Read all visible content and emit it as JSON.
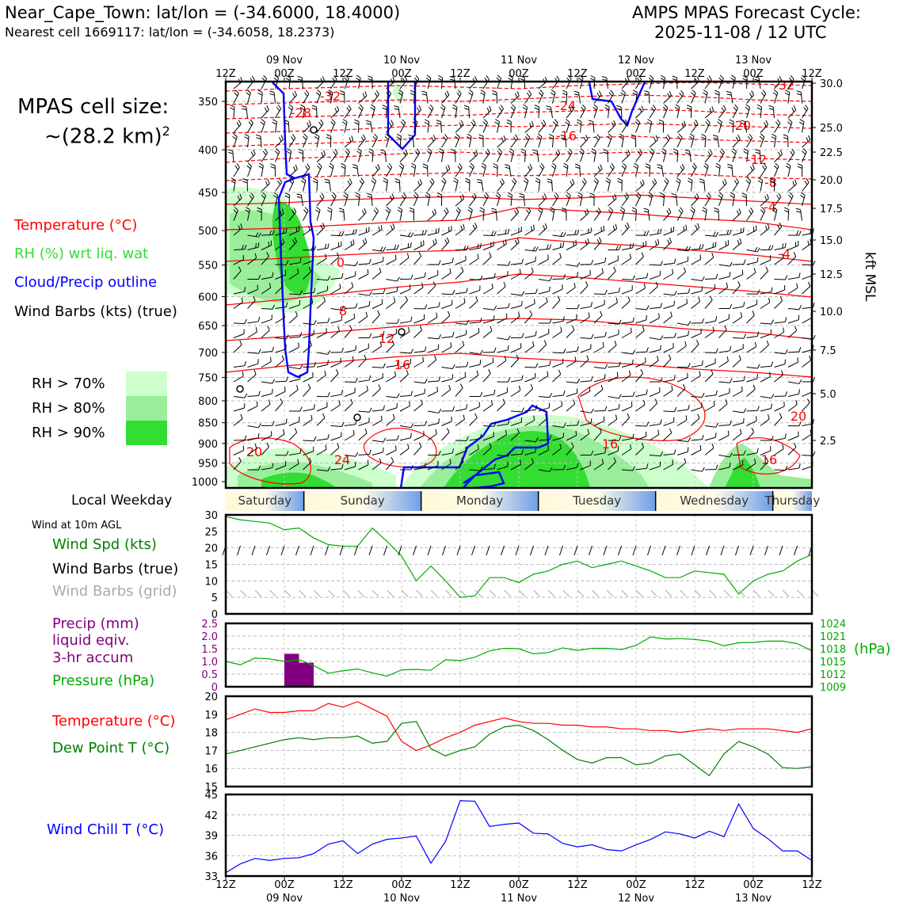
{
  "header": {
    "location": "Near_Cape_Town: lat/lon = (-34.6000, 18.4000)",
    "nearest_cell": "Nearest cell 1669117: lat/lon = (-34.6058, 18.2373)",
    "forecast_title": "AMPS MPAS Forecast Cycle:",
    "forecast_cycle": "2025-11-08 / 12 UTC"
  },
  "cell_size": {
    "line1": "MPAS cell size:",
    "line2": "~(28.2 km)",
    "superscript": "2"
  },
  "legend_upper": {
    "temperature": "Temperature (°C)",
    "rh": "RH (%) wrt liq. wat",
    "cloud": "Cloud/Precip outline",
    "wind": "Wind Barbs (kts) (true)",
    "rh70": "RH > 70%",
    "rh80": "RH > 80%",
    "rh90": "RH > 90%"
  },
  "colors": {
    "temperature": "#ff0000",
    "rh_text": "#33cc33",
    "cloud": "#0000ff",
    "rh70": "#ccffcc",
    "rh80": "#99ee99",
    "rh90": "#33dd33",
    "pressure": "#00aa00",
    "precip": "#800080",
    "dewpoint": "#008000",
    "windchill": "#0000ff",
    "grid_barbs": "#aaaaaa"
  },
  "time_axis": {
    "ticks": [
      "12Z",
      "00Z",
      "12Z",
      "00Z",
      "12Z",
      "00Z",
      "12Z",
      "00Z",
      "12Z",
      "00Z",
      "12Z"
    ],
    "dates": [
      "09 Nov",
      "10 Nov",
      "11 Nov",
      "12 Nov",
      "13 Nov"
    ]
  },
  "weekday": {
    "label": "Local Weekday",
    "days": [
      "Saturday",
      "Sunday",
      "Monday",
      "Tuesday",
      "Wednesday",
      "Thursday"
    ]
  },
  "panel_labels": {
    "wind_at": "Wind at 10m AGL",
    "wind_spd": "Wind Spd (kts)",
    "wind_barbs_true": "Wind Barbs (true)",
    "wind_barbs_grid": "Wind Barbs (grid)",
    "precip_1": "Precip (mm)",
    "precip_2": "liquid eqiv.",
    "precip_3": "3-hr accum",
    "pressure": "Pressure (hPa)",
    "hpa": "(hPa)",
    "temperature": "Temperature (°C)",
    "dewpoint": "Dew Point T (°C)",
    "windchill": "Wind Chill T (°C)",
    "kft": "kft MSL"
  },
  "chart_data": [
    {
      "type": "heatmap",
      "title": "Vertical cross-section",
      "pressure_levels": [
        "350",
        "400",
        "450",
        "500",
        "550",
        "600",
        "650",
        "700",
        "750",
        "800",
        "850",
        "900",
        "950",
        "1000"
      ],
      "kft_labels": [
        "30.0",
        "25.0",
        "22.5",
        "20.0",
        "17.5",
        "15.0",
        "12.5",
        "10.0",
        "7.5",
        "5.0",
        "2.5"
      ],
      "isotherm_labels": [
        "-32",
        "-28",
        "-32",
        "-24",
        "-16",
        "-20",
        "-12",
        "-8",
        "-4",
        "-4",
        "0",
        "8",
        "12",
        "16",
        "20",
        "24",
        "16",
        "16",
        "20"
      ]
    },
    {
      "type": "line",
      "name": "Wind speed 10m",
      "ylim": [
        0,
        30
      ],
      "yticks": [
        "0",
        "5",
        "10",
        "15",
        "20",
        "25",
        "30"
      ],
      "x_hours": [
        0,
        3,
        6,
        9,
        12,
        15,
        18,
        21,
        24,
        27,
        30,
        33,
        36,
        39,
        42,
        45,
        48,
        51,
        54,
        57,
        60,
        63,
        66,
        69,
        72,
        75,
        78,
        81,
        84,
        87,
        90,
        93,
        96,
        99,
        102,
        105,
        108,
        111,
        114,
        117,
        120
      ],
      "values": [
        29.5,
        28.5,
        28,
        27.5,
        25.5,
        26,
        23,
        21,
        20.5,
        20.5,
        26,
        22,
        17.5,
        10,
        14.5,
        10,
        5,
        5.5,
        11,
        11,
        9.5,
        12,
        13,
        15,
        16,
        14,
        15,
        16,
        14.5,
        13,
        11,
        11,
        13,
        12.5,
        12,
        6,
        10,
        12,
        13,
        16,
        18
      ]
    },
    {
      "type": "bar",
      "name": "Precip 3-hr accum",
      "ylim": [
        0,
        2.5
      ],
      "yticks": [
        "0",
        "0.5",
        "1.0",
        "1.5",
        "2.0",
        "2.5"
      ],
      "bars": [
        {
          "start_hour": 12,
          "end_hour": 15,
          "value": 1.3
        },
        {
          "start_hour": 15,
          "end_hour": 18,
          "value": 0.95
        }
      ]
    },
    {
      "type": "line",
      "name": "Pressure",
      "ylim": [
        1009,
        1024
      ],
      "yticks": [
        "1009",
        "1012",
        "1015",
        "1018",
        "1021",
        "1024"
      ],
      "x_hours": [
        0,
        3,
        6,
        9,
        12,
        15,
        18,
        21,
        24,
        27,
        30,
        33,
        36,
        39,
        42,
        45,
        48,
        51,
        54,
        57,
        60,
        63,
        66,
        69,
        72,
        75,
        78,
        81,
        84,
        87,
        90,
        93,
        96,
        99,
        102,
        105,
        108,
        111,
        114,
        117,
        120
      ],
      "values": [
        1015,
        1014.2,
        1015.8,
        1015.6,
        1015,
        1015.4,
        1014,
        1012.2,
        1012.8,
        1013.2,
        1012.3,
        1011.5,
        1013,
        1013.1,
        1012.9,
        1015.4,
        1015.2,
        1016,
        1017.5,
        1018.1,
        1018,
        1016.8,
        1017.1,
        1018.2,
        1017.6,
        1018.1,
        1018.1,
        1017.8,
        1018.8,
        1020.8,
        1020.3,
        1020.4,
        1020.2,
        1019.8,
        1018.7,
        1019.4,
        1019.5,
        1019.8,
        1019.8,
        1019.2,
        1017.5
      ]
    },
    {
      "type": "line",
      "name": "Temperature / Dew point",
      "ylim": [
        15,
        20
      ],
      "yticks": [
        "15",
        "16",
        "17",
        "18",
        "19",
        "20"
      ],
      "x_hours": [
        0,
        3,
        6,
        9,
        12,
        15,
        18,
        21,
        24,
        27,
        30,
        33,
        36,
        39,
        42,
        45,
        48,
        51,
        54,
        57,
        60,
        63,
        66,
        69,
        72,
        75,
        78,
        81,
        84,
        87,
        90,
        93,
        96,
        99,
        102,
        105,
        108,
        111,
        114,
        117,
        120
      ],
      "series": [
        {
          "name": "Temperature",
          "values": [
            18.7,
            19,
            19.3,
            19.1,
            19.1,
            19.2,
            19.2,
            19.6,
            19.4,
            19.7,
            19.3,
            18.9,
            17.5,
            17,
            17.3,
            17.7,
            18,
            18.4,
            18.6,
            18.8,
            18.6,
            18.5,
            18.5,
            18.4,
            18.4,
            18.3,
            18.3,
            18.2,
            18.2,
            18.1,
            18.1,
            18.0,
            18.1,
            18.2,
            18.1,
            18.2,
            18.2,
            18.2,
            18.1,
            18.0,
            18.2
          ]
        },
        {
          "name": "Dew Point",
          "values": [
            16.8,
            17,
            17.2,
            17.4,
            17.6,
            17.7,
            17.6,
            17.7,
            17.7,
            17.8,
            17.4,
            17.5,
            18.5,
            18.6,
            17.1,
            16.7,
            17,
            17.2,
            17.9,
            18.3,
            18.4,
            18.1,
            17.6,
            17,
            16.5,
            16.3,
            16.6,
            16.6,
            16.2,
            16.3,
            16.7,
            16.8,
            16.2,
            15.6,
            16.8,
            17.5,
            17.2,
            16.8,
            16.05,
            16,
            16.1
          ]
        }
      ]
    },
    {
      "type": "line",
      "name": "Wind Chill",
      "ylim": [
        33,
        45
      ],
      "yticks": [
        "33",
        "36",
        "39",
        "42",
        "45"
      ],
      "x_hours": [
        0,
        3,
        6,
        9,
        12,
        15,
        18,
        21,
        24,
        27,
        30,
        33,
        36,
        39,
        42,
        45,
        48,
        51,
        54,
        57,
        60,
        63,
        66,
        69,
        72,
        75,
        78,
        81,
        84,
        87,
        90,
        93,
        96,
        99,
        102,
        105,
        108,
        111,
        114,
        117,
        120
      ],
      "values": [
        33.5,
        34.8,
        35.6,
        35.3,
        35.6,
        35.7,
        36.3,
        37.7,
        38.2,
        36.3,
        37.7,
        38.4,
        38.6,
        38.9,
        34.9,
        38.1,
        44.1,
        44.0,
        40.3,
        40.6,
        40.8,
        39.3,
        39.2,
        37.8,
        37.3,
        37.6,
        36.9,
        36.7,
        37.6,
        38.4,
        39.5,
        39.2,
        38.6,
        39.6,
        38.8,
        43.6,
        40,
        38.5,
        36.7,
        36.7,
        35.3
      ]
    }
  ]
}
